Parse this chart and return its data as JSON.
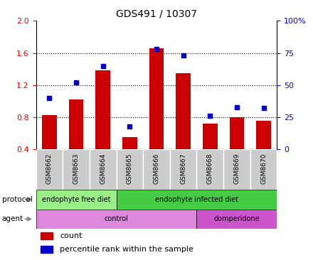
{
  "title": "GDS491 / 10307",
  "samples": [
    "GSM8662",
    "GSM8663",
    "GSM8664",
    "GSM8665",
    "GSM8666",
    "GSM8667",
    "GSM8668",
    "GSM8669",
    "GSM8670"
  ],
  "counts": [
    0.83,
    1.02,
    1.38,
    0.55,
    1.66,
    1.35,
    0.72,
    0.8,
    0.76
  ],
  "percentiles": [
    40,
    52,
    65,
    18,
    78,
    73,
    26,
    33,
    32
  ],
  "ylim_left": [
    0.4,
    2.0
  ],
  "ylim_right": [
    0,
    100
  ],
  "yticks_left": [
    0.4,
    0.8,
    1.2,
    1.6,
    2.0
  ],
  "yticks_right": [
    0,
    25,
    50,
    75,
    100
  ],
  "bar_color": "#cc0000",
  "dot_color": "#0000cc",
  "protocol_light_color": "#99ee88",
  "protocol_dark_color": "#44cc44",
  "agent_color": "#dd88dd",
  "tick_bg_color": "#cccccc",
  "legend_count_color": "#cc0000",
  "legend_pct_color": "#0000cc",
  "proto_free_count": 3,
  "proto_infected_count": 6,
  "agent_control_count": 6,
  "agent_domperi_count": 3
}
